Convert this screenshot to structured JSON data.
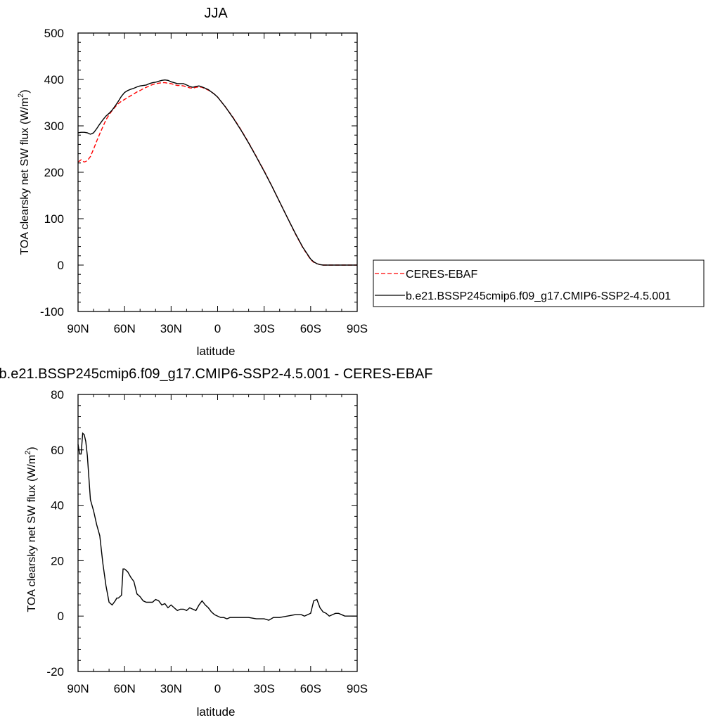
{
  "chart_data": [
    {
      "type": "line",
      "title": "JJA",
      "xlabel": "latitude",
      "ylabel": "TOA clearsky net SW flux (W/m",
      "ylabel_sup": "2",
      "ylabel_end": ")",
      "xlim": [
        90,
        -90
      ],
      "ylim": [
        -100,
        500
      ],
      "xticks": [
        90,
        60,
        30,
        0,
        -30,
        -60,
        -90
      ],
      "xtick_labels": [
        "90N",
        "60N",
        "30N",
        "0",
        "30S",
        "60S",
        "90S"
      ],
      "yticks": [
        -100,
        0,
        100,
        200,
        300,
        400,
        500
      ],
      "ytick_labels": [
        "-100",
        "0",
        "100",
        "200",
        "300",
        "400",
        "500"
      ],
      "grid": false,
      "legend_position": "right",
      "x": [
        90,
        88,
        86,
        84,
        82,
        80,
        78,
        76,
        74,
        72,
        70,
        68,
        66,
        64,
        62,
        60,
        58,
        56,
        54,
        52,
        50,
        48,
        46,
        44,
        42,
        40,
        38,
        36,
        34,
        32,
        30,
        28,
        26,
        24,
        22,
        20,
        18,
        16,
        14,
        12,
        10,
        8,
        6,
        4,
        2,
        0,
        -5,
        -10,
        -15,
        -20,
        -25,
        -30,
        -35,
        -40,
        -45,
        -50,
        -55,
        -60,
        -62,
        -64,
        -66,
        -68,
        -70,
        -72,
        -74,
        -76,
        -78,
        -80,
        -82,
        -84,
        -86,
        -88,
        -90
      ],
      "series": [
        {
          "name": "CERES-EBAF",
          "color": "#ff0000",
          "dash": true,
          "values": [
            222,
            227,
            222,
            225,
            234,
            250,
            267,
            283,
            298,
            313,
            324,
            333,
            341,
            348,
            353,
            357,
            361,
            365,
            369,
            373,
            376,
            380,
            383,
            386,
            389,
            391,
            392,
            393,
            393,
            392,
            391,
            389,
            387,
            387,
            386,
            384,
            382,
            381,
            383,
            384,
            383,
            380,
            377,
            373,
            368,
            362,
            341,
            318,
            292,
            264,
            234,
            203,
            170,
            136,
            102,
            68,
            37,
            12,
            6,
            3,
            1,
            0,
            0,
            0,
            0,
            0,
            0,
            0,
            0,
            0,
            0,
            0,
            0
          ]
        },
        {
          "name": "b.e21.BSSP245cmip6.f09_g17.CMIP6-SSP2-4.5.001",
          "color": "#000000",
          "dash": false,
          "values": [
            285,
            286,
            286,
            285,
            282,
            285,
            294,
            304,
            313,
            321,
            327,
            334,
            343,
            353,
            364,
            372,
            376,
            379,
            381,
            384,
            386,
            387,
            388,
            391,
            393,
            394,
            396,
            398,
            399,
            398,
            395,
            393,
            391,
            391,
            391,
            388,
            385,
            383,
            385,
            386,
            384,
            381,
            378,
            373,
            368,
            362,
            341,
            317,
            291,
            263,
            233,
            202,
            170,
            136,
            102,
            69,
            38,
            13,
            7,
            3,
            1,
            0,
            0,
            0,
            0,
            0,
            0,
            0,
            0,
            0,
            0,
            0,
            0
          ]
        }
      ]
    },
    {
      "type": "line",
      "title": "b.e21.BSSP245cmip6.f09_g17.CMIP6-SSP2-4.5.001 - CERES-EBAF",
      "xlabel": "latitude",
      "ylabel": "TOA clearsky net SW flux (W/m",
      "ylabel_sup": "2",
      "ylabel_end": ")",
      "xlim": [
        90,
        -90
      ],
      "ylim": [
        -20,
        80
      ],
      "xticks": [
        90,
        60,
        30,
        0,
        -30,
        -60,
        -90
      ],
      "xtick_labels": [
        "90N",
        "60N",
        "30N",
        "0",
        "30S",
        "60S",
        "90S"
      ],
      "yticks": [
        -20,
        0,
        20,
        40,
        60,
        80
      ],
      "ytick_labels": [
        "-20",
        "0",
        "20",
        "40",
        "60",
        "80"
      ],
      "grid": false,
      "x": [
        90,
        89,
        88,
        87,
        86,
        85,
        84,
        83,
        82,
        80,
        78,
        76,
        74,
        72,
        70,
        68,
        66,
        65,
        64,
        62,
        61,
        60,
        58,
        56,
        54,
        52,
        50,
        48,
        46,
        44,
        42,
        40,
        38,
        36,
        34,
        32,
        30,
        28,
        26,
        24,
        22,
        20,
        18,
        16,
        14,
        12,
        10,
        8,
        6,
        4,
        2,
        0,
        -2,
        -4,
        -6,
        -8,
        -10,
        -15,
        -20,
        -25,
        -30,
        -33,
        -36,
        -40,
        -45,
        -50,
        -54,
        -56,
        -58,
        -60,
        -62,
        -64,
        -66,
        -68,
        -70,
        -72,
        -74,
        -76,
        -78,
        -80,
        -82,
        -84,
        -86,
        -88,
        -90
      ],
      "series": [
        {
          "name": "",
          "color": "#000000",
          "dash": false,
          "values": [
            62,
            58.5,
            58.5,
            66,
            65.5,
            63,
            58,
            50,
            42,
            38,
            33,
            29,
            19,
            11,
            5,
            4,
            5.5,
            6.5,
            6.5,
            7.5,
            17,
            17,
            16,
            14,
            12.5,
            8,
            7,
            5.5,
            5,
            5,
            5,
            6,
            5.5,
            4,
            4.5,
            3,
            4,
            3,
            2,
            2.5,
            2.5,
            2,
            3,
            2.5,
            2,
            4,
            5.5,
            4,
            3,
            1.5,
            0.5,
            0,
            -0.5,
            -0.5,
            -1,
            -0.5,
            -0.5,
            -0.5,
            -0.5,
            -1,
            -1,
            -1.5,
            -0.5,
            -0.5,
            0,
            0.5,
            0.5,
            0,
            0.5,
            1,
            5.5,
            6,
            3,
            1.5,
            1,
            0,
            0.5,
            1,
            1,
            0.5,
            0,
            0,
            0,
            0,
            0
          ]
        }
      ]
    }
  ]
}
